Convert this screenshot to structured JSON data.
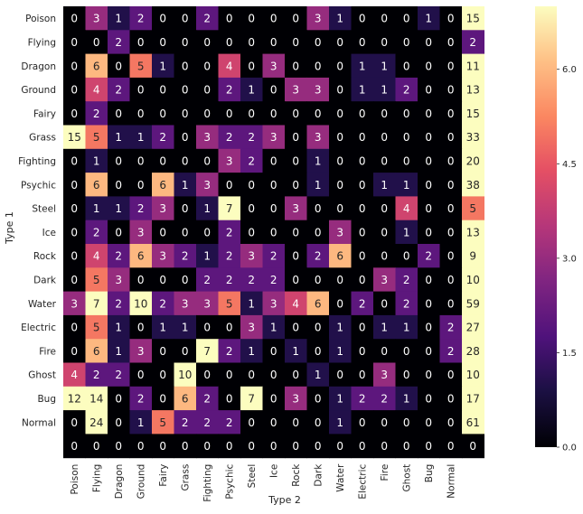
{
  "chart_data": {
    "type": "heatmap",
    "title": "",
    "xlabel": "Type 2",
    "ylabel": "Type 1",
    "columns": [
      "Poison",
      "Flying",
      "Dragon",
      "Ground",
      "Fairy",
      "Grass",
      "Fighting",
      "Psychic",
      "Steel",
      "Ice",
      "Rock",
      "Dark",
      "Water",
      "Electric",
      "Fire",
      "Ghost",
      "Bug",
      "Normal",
      ""
    ],
    "rows": [
      "Poison",
      "Flying",
      "Dragon",
      "Ground",
      "Fairy",
      "Grass",
      "Fighting",
      "Psychic",
      "Steel",
      "Ice",
      "Rock",
      "Dark",
      "Water",
      "Electric",
      "Fire",
      "Ghost",
      "Bug",
      "Normal",
      ""
    ],
    "values": [
      [
        0,
        3,
        1,
        2,
        0,
        0,
        2,
        0,
        0,
        0,
        0,
        3,
        1,
        0,
        0,
        0,
        1,
        0,
        15
      ],
      [
        0,
        0,
        2,
        0,
        0,
        0,
        0,
        0,
        0,
        0,
        0,
        0,
        0,
        0,
        0,
        0,
        0,
        0,
        2
      ],
      [
        0,
        6,
        0,
        5,
        1,
        0,
        0,
        4,
        0,
        3,
        0,
        0,
        0,
        1,
        1,
        0,
        0,
        0,
        11
      ],
      [
        0,
        4,
        2,
        0,
        0,
        0,
        0,
        2,
        1,
        0,
        3,
        3,
        0,
        1,
        1,
        2,
        0,
        0,
        13
      ],
      [
        0,
        2,
        0,
        0,
        0,
        0,
        0,
        0,
        0,
        0,
        0,
        0,
        0,
        0,
        0,
        0,
        0,
        0,
        15
      ],
      [
        15,
        5,
        1,
        1,
        2,
        0,
        3,
        2,
        2,
        3,
        0,
        3,
        0,
        0,
        0,
        0,
        0,
        0,
        33
      ],
      [
        0,
        1,
        0,
        0,
        0,
        0,
        0,
        3,
        2,
        0,
        0,
        1,
        0,
        0,
        0,
        0,
        0,
        0,
        20
      ],
      [
        0,
        6,
        0,
        0,
        6,
        1,
        3,
        0,
        0,
        0,
        0,
        1,
        0,
        0,
        1,
        1,
        0,
        0,
        38
      ],
      [
        0,
        1,
        1,
        2,
        3,
        0,
        1,
        7,
        0,
        0,
        3,
        0,
        0,
        0,
        0,
        4,
        0,
        0,
        5
      ],
      [
        0,
        2,
        0,
        3,
        0,
        0,
        0,
        2,
        0,
        0,
        0,
        0,
        3,
        0,
        0,
        1,
        0,
        0,
        13
      ],
      [
        0,
        4,
        2,
        6,
        3,
        2,
        1,
        2,
        3,
        2,
        0,
        2,
        6,
        0,
        0,
        0,
        2,
        0,
        9
      ],
      [
        0,
        5,
        3,
        0,
        0,
        0,
        2,
        2,
        2,
        2,
        0,
        0,
        0,
        0,
        3,
        2,
        0,
        0,
        10
      ],
      [
        3,
        7,
        2,
        10,
        2,
        3,
        3,
        5,
        1,
        3,
        4,
        6,
        0,
        2,
        0,
        2,
        0,
        0,
        59
      ],
      [
        0,
        5,
        1,
        0,
        1,
        1,
        0,
        0,
        3,
        1,
        0,
        0,
        1,
        0,
        1,
        1,
        0,
        2,
        27
      ],
      [
        0,
        6,
        1,
        3,
        0,
        0,
        7,
        2,
        1,
        0,
        1,
        0,
        1,
        0,
        0,
        0,
        0,
        2,
        28
      ],
      [
        4,
        2,
        2,
        0,
        0,
        10,
        0,
        0,
        0,
        0,
        0,
        1,
        0,
        0,
        3,
        0,
        0,
        0,
        10
      ],
      [
        12,
        14,
        0,
        2,
        0,
        6,
        2,
        0,
        7,
        0,
        3,
        0,
        1,
        2,
        2,
        1,
        0,
        0,
        17
      ],
      [
        0,
        24,
        0,
        1,
        5,
        2,
        2,
        2,
        0,
        0,
        0,
        0,
        1,
        0,
        0,
        0,
        0,
        0,
        61
      ],
      [
        0,
        0,
        0,
        0,
        0,
        0,
        0,
        0,
        0,
        0,
        0,
        0,
        0,
        0,
        0,
        0,
        0,
        0,
        0
      ]
    ],
    "color_scale": {
      "colormap": "magma",
      "vmin": 0,
      "vmax": 7,
      "ticks": [
        "0.0",
        "1.5",
        "3.0",
        "4.5",
        "6.0"
      ]
    }
  }
}
